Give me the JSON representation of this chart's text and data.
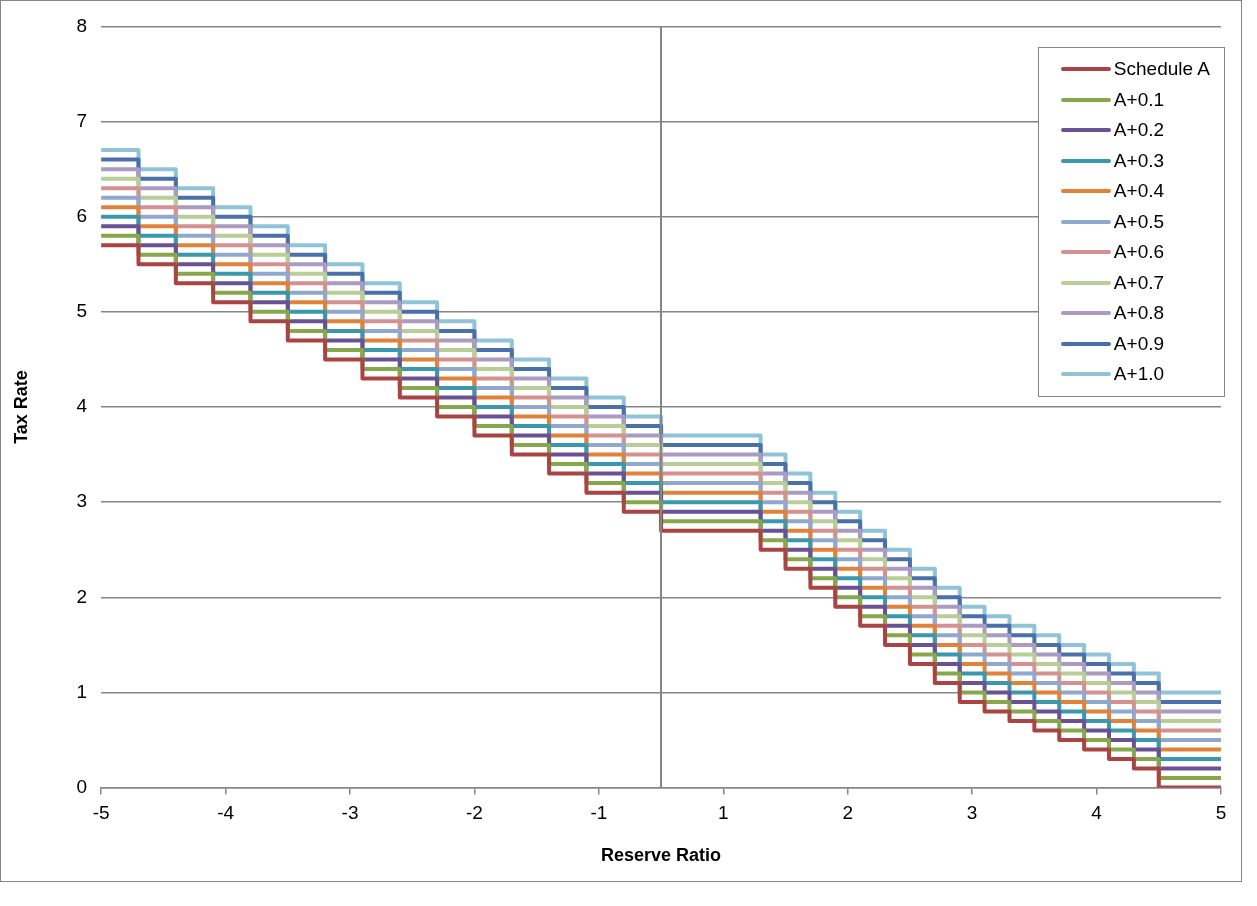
{
  "chart_data": {
    "type": "step",
    "xlabel": "Reserve Ratio",
    "ylabel": "Tax Rate",
    "categories": [
      "-5",
      null,
      null,
      null,
      null,
      null,
      null,
      null,
      null,
      null,
      "-4",
      null,
      null,
      null,
      null,
      null,
      null,
      null,
      null,
      null,
      "-3",
      null,
      null,
      null,
      null,
      null,
      null,
      null,
      null,
      null,
      "-2",
      null,
      null,
      null,
      null,
      null,
      null,
      null,
      null,
      null,
      "-1",
      null,
      null,
      null,
      null,
      null,
      null,
      null,
      null,
      null,
      "1",
      null,
      null,
      null,
      null,
      null,
      null,
      null,
      null,
      null,
      "2",
      null,
      null,
      null,
      null,
      null,
      null,
      null,
      null,
      null,
      "3",
      null,
      null,
      null,
      null,
      null,
      null,
      null,
      null,
      null,
      "4",
      null,
      null,
      null,
      null,
      null,
      null,
      null,
      null,
      null,
      "5"
    ],
    "ylim": [
      0,
      8
    ],
    "yticks": [
      0,
      1,
      2,
      3,
      4,
      5,
      6,
      7,
      8
    ],
    "grid": "y",
    "legend": "top right",
    "line_style": "solid",
    "marker": "none",
    "series": [
      {
        "name": "Schedule A",
        "color": "#a94442",
        "values": [
          5.7,
          5.7,
          5.7,
          5.5,
          5.5,
          5.5,
          5.3,
          5.3,
          5.3,
          5.1,
          5.1,
          5.1,
          4.9,
          4.9,
          4.9,
          4.7,
          4.7,
          4.7,
          4.5,
          4.5,
          4.5,
          4.3,
          4.3,
          4.3,
          4.1,
          4.1,
          4.1,
          3.9,
          3.9,
          3.9,
          3.7,
          3.7,
          3.7,
          3.5,
          3.5,
          3.5,
          3.3,
          3.3,
          3.3,
          3.1,
          3.1,
          3.1,
          2.9,
          2.9,
          2.9,
          2.7,
          2.7,
          2.7,
          2.7,
          2.7,
          2.7,
          2.7,
          2.7,
          2.5,
          2.5,
          2.3,
          2.3,
          2.1,
          2.1,
          1.9,
          1.9,
          1.7,
          1.7,
          1.5,
          1.5,
          1.3,
          1.3,
          1.1,
          1.1,
          0.9,
          0.9,
          0.8,
          0.8,
          0.7,
          0.7,
          0.6,
          0.6,
          0.5,
          0.5,
          0.4,
          0.4,
          0.3,
          0.3,
          0.2,
          0.2,
          0,
          0,
          0,
          0,
          0,
          0
        ]
      },
      {
        "name": "A+0.1",
        "color": "#86a84a",
        "values": [
          5.8,
          5.8,
          5.8,
          5.6,
          5.6,
          5.6,
          5.4,
          5.4,
          5.4,
          5.2,
          5.2,
          5.2,
          5.0,
          5.0,
          5.0,
          4.8,
          4.8,
          4.8,
          4.6,
          4.6,
          4.6,
          4.4,
          4.4,
          4.4,
          4.2,
          4.2,
          4.2,
          4.0,
          4.0,
          4.0,
          3.8,
          3.8,
          3.8,
          3.6,
          3.6,
          3.6,
          3.4,
          3.4,
          3.4,
          3.2,
          3.2,
          3.2,
          3.0,
          3.0,
          3.0,
          2.8,
          2.8,
          2.8,
          2.8,
          2.8,
          2.8,
          2.8,
          2.8,
          2.6,
          2.6,
          2.4,
          2.4,
          2.2,
          2.2,
          2.0,
          2.0,
          1.8,
          1.8,
          1.6,
          1.6,
          1.4,
          1.4,
          1.2,
          1.2,
          1.0,
          1.0,
          0.9,
          0.9,
          0.8,
          0.8,
          0.7,
          0.7,
          0.6,
          0.6,
          0.5,
          0.5,
          0.4,
          0.4,
          0.3,
          0.3,
          0.1,
          0.1,
          0.1,
          0.1,
          0.1,
          0.1
        ]
      },
      {
        "name": "A+0.2",
        "color": "#6a5193",
        "values": [
          5.9,
          5.9,
          5.9,
          5.7,
          5.7,
          5.7,
          5.5,
          5.5,
          5.5,
          5.3,
          5.3,
          5.3,
          5.1,
          5.1,
          5.1,
          4.9,
          4.9,
          4.9,
          4.7,
          4.7,
          4.7,
          4.5,
          4.5,
          4.5,
          4.3,
          4.3,
          4.3,
          4.1,
          4.1,
          4.1,
          3.9,
          3.9,
          3.9,
          3.7,
          3.7,
          3.7,
          3.5,
          3.5,
          3.5,
          3.3,
          3.3,
          3.3,
          3.1,
          3.1,
          3.1,
          2.9,
          2.9,
          2.9,
          2.9,
          2.9,
          2.9,
          2.9,
          2.9,
          2.7,
          2.7,
          2.5,
          2.5,
          2.3,
          2.3,
          2.1,
          2.1,
          1.9,
          1.9,
          1.7,
          1.7,
          1.5,
          1.5,
          1.3,
          1.3,
          1.1,
          1.1,
          1.0,
          1.0,
          0.9,
          0.9,
          0.8,
          0.8,
          0.7,
          0.7,
          0.6,
          0.6,
          0.5,
          0.5,
          0.4,
          0.4,
          0.2,
          0.2,
          0.2,
          0.2,
          0.2,
          0.2
        ]
      },
      {
        "name": "A+0.3",
        "color": "#3a98ae",
        "values": [
          6.0,
          6.0,
          6.0,
          5.8,
          5.8,
          5.8,
          5.6,
          5.6,
          5.6,
          5.4,
          5.4,
          5.4,
          5.2,
          5.2,
          5.2,
          5.0,
          5.0,
          5.0,
          4.8,
          4.8,
          4.8,
          4.6,
          4.6,
          4.6,
          4.4,
          4.4,
          4.4,
          4.2,
          4.2,
          4.2,
          4.0,
          4.0,
          4.0,
          3.8,
          3.8,
          3.8,
          3.6,
          3.6,
          3.6,
          3.4,
          3.4,
          3.4,
          3.2,
          3.2,
          3.2,
          3.0,
          3.0,
          3.0,
          3.0,
          3.0,
          3.0,
          3.0,
          3.0,
          2.8,
          2.8,
          2.6,
          2.6,
          2.4,
          2.4,
          2.2,
          2.2,
          2.0,
          2.0,
          1.8,
          1.8,
          1.6,
          1.6,
          1.4,
          1.4,
          1.2,
          1.2,
          1.1,
          1.1,
          1.0,
          1.0,
          0.9,
          0.9,
          0.8,
          0.8,
          0.7,
          0.7,
          0.6,
          0.6,
          0.5,
          0.5,
          0.3,
          0.3,
          0.3,
          0.3,
          0.3,
          0.3
        ]
      },
      {
        "name": "A+0.4",
        "color": "#e0823a",
        "values": [
          6.1,
          6.1,
          6.1,
          5.9,
          5.9,
          5.9,
          5.7,
          5.7,
          5.7,
          5.5,
          5.5,
          5.5,
          5.3,
          5.3,
          5.3,
          5.1,
          5.1,
          5.1,
          4.9,
          4.9,
          4.9,
          4.7,
          4.7,
          4.7,
          4.5,
          4.5,
          4.5,
          4.3,
          4.3,
          4.3,
          4.1,
          4.1,
          4.1,
          3.9,
          3.9,
          3.9,
          3.7,
          3.7,
          3.7,
          3.5,
          3.5,
          3.5,
          3.3,
          3.3,
          3.3,
          3.1,
          3.1,
          3.1,
          3.1,
          3.1,
          3.1,
          3.1,
          3.1,
          2.9,
          2.9,
          2.7,
          2.7,
          2.5,
          2.5,
          2.3,
          2.3,
          2.1,
          2.1,
          1.9,
          1.9,
          1.7,
          1.7,
          1.5,
          1.5,
          1.3,
          1.3,
          1.2,
          1.2,
          1.1,
          1.1,
          1.0,
          1.0,
          0.9,
          0.9,
          0.8,
          0.8,
          0.7,
          0.7,
          0.6,
          0.6,
          0.4,
          0.4,
          0.4,
          0.4,
          0.4,
          0.4
        ]
      },
      {
        "name": "A+0.5",
        "color": "#8ea8d0",
        "values": [
          6.2,
          6.2,
          6.2,
          6.0,
          6.0,
          6.0,
          5.8,
          5.8,
          5.8,
          5.6,
          5.6,
          5.6,
          5.4,
          5.4,
          5.4,
          5.2,
          5.2,
          5.2,
          5.0,
          5.0,
          5.0,
          4.8,
          4.8,
          4.8,
          4.6,
          4.6,
          4.6,
          4.4,
          4.4,
          4.4,
          4.2,
          4.2,
          4.2,
          4.0,
          4.0,
          4.0,
          3.8,
          3.8,
          3.8,
          3.6,
          3.6,
          3.6,
          3.4,
          3.4,
          3.4,
          3.2,
          3.2,
          3.2,
          3.2,
          3.2,
          3.2,
          3.2,
          3.2,
          3.0,
          3.0,
          2.8,
          2.8,
          2.6,
          2.6,
          2.4,
          2.4,
          2.2,
          2.2,
          2.0,
          2.0,
          1.8,
          1.8,
          1.6,
          1.6,
          1.4,
          1.4,
          1.3,
          1.3,
          1.2,
          1.2,
          1.1,
          1.1,
          1.0,
          1.0,
          0.9,
          0.9,
          0.8,
          0.8,
          0.7,
          0.7,
          0.5,
          0.5,
          0.5,
          0.5,
          0.5,
          0.5
        ]
      },
      {
        "name": "A+0.6",
        "color": "#d49190",
        "values": [
          6.3,
          6.3,
          6.3,
          6.1,
          6.1,
          6.1,
          5.9,
          5.9,
          5.9,
          5.7,
          5.7,
          5.7,
          5.5,
          5.5,
          5.5,
          5.3,
          5.3,
          5.3,
          5.1,
          5.1,
          5.1,
          4.9,
          4.9,
          4.9,
          4.7,
          4.7,
          4.7,
          4.5,
          4.5,
          4.5,
          4.3,
          4.3,
          4.3,
          4.1,
          4.1,
          4.1,
          3.9,
          3.9,
          3.9,
          3.7,
          3.7,
          3.7,
          3.5,
          3.5,
          3.5,
          3.3,
          3.3,
          3.3,
          3.3,
          3.3,
          3.3,
          3.3,
          3.3,
          3.1,
          3.1,
          2.9,
          2.9,
          2.7,
          2.7,
          2.5,
          2.5,
          2.3,
          2.3,
          2.1,
          2.1,
          1.9,
          1.9,
          1.7,
          1.7,
          1.5,
          1.5,
          1.4,
          1.4,
          1.3,
          1.3,
          1.2,
          1.2,
          1.1,
          1.1,
          1.0,
          1.0,
          0.9,
          0.9,
          0.8,
          0.8,
          0.6,
          0.6,
          0.6,
          0.6,
          0.6,
          0.6
        ]
      },
      {
        "name": "A+0.7",
        "color": "#b9cd96",
        "values": [
          6.4,
          6.4,
          6.4,
          6.2,
          6.2,
          6.2,
          6.0,
          6.0,
          6.0,
          5.8,
          5.8,
          5.8,
          5.6,
          5.6,
          5.6,
          5.4,
          5.4,
          5.4,
          5.2,
          5.2,
          5.2,
          5.0,
          5.0,
          5.0,
          4.8,
          4.8,
          4.8,
          4.6,
          4.6,
          4.6,
          4.4,
          4.4,
          4.4,
          4.2,
          4.2,
          4.2,
          4.0,
          4.0,
          4.0,
          3.8,
          3.8,
          3.8,
          3.6,
          3.6,
          3.6,
          3.4,
          3.4,
          3.4,
          3.4,
          3.4,
          3.4,
          3.4,
          3.4,
          3.2,
          3.2,
          3.0,
          3.0,
          2.8,
          2.8,
          2.6,
          2.6,
          2.4,
          2.4,
          2.2,
          2.2,
          2.0,
          2.0,
          1.8,
          1.8,
          1.6,
          1.6,
          1.5,
          1.5,
          1.4,
          1.4,
          1.3,
          1.3,
          1.2,
          1.2,
          1.1,
          1.1,
          1.0,
          1.0,
          0.9,
          0.9,
          0.7,
          0.7,
          0.7,
          0.7,
          0.7,
          0.7
        ]
      },
      {
        "name": "A+0.8",
        "color": "#a99bc1",
        "values": [
          6.5,
          6.5,
          6.5,
          6.3,
          6.3,
          6.3,
          6.1,
          6.1,
          6.1,
          5.9,
          5.9,
          5.9,
          5.7,
          5.7,
          5.7,
          5.5,
          5.5,
          5.5,
          5.3,
          5.3,
          5.3,
          5.1,
          5.1,
          5.1,
          4.9,
          4.9,
          4.9,
          4.7,
          4.7,
          4.7,
          4.5,
          4.5,
          4.5,
          4.3,
          4.3,
          4.3,
          4.1,
          4.1,
          4.1,
          3.9,
          3.9,
          3.9,
          3.7,
          3.7,
          3.7,
          3.5,
          3.5,
          3.5,
          3.5,
          3.5,
          3.5,
          3.5,
          3.5,
          3.3,
          3.3,
          3.1,
          3.1,
          2.9,
          2.9,
          2.7,
          2.7,
          2.5,
          2.5,
          2.3,
          2.3,
          2.1,
          2.1,
          1.9,
          1.9,
          1.7,
          1.7,
          1.6,
          1.6,
          1.5,
          1.5,
          1.4,
          1.4,
          1.3,
          1.3,
          1.2,
          1.2,
          1.1,
          1.1,
          1.0,
          1.0,
          0.8,
          0.8,
          0.8,
          0.8,
          0.8,
          0.8
        ]
      },
      {
        "name": "A+0.9",
        "color": "#4a70aa",
        "values": [
          6.6,
          6.6,
          6.6,
          6.4,
          6.4,
          6.4,
          6.2,
          6.2,
          6.2,
          6.0,
          6.0,
          6.0,
          5.8,
          5.8,
          5.8,
          5.6,
          5.6,
          5.6,
          5.4,
          5.4,
          5.4,
          5.2,
          5.2,
          5.2,
          5.0,
          5.0,
          5.0,
          4.8,
          4.8,
          4.8,
          4.6,
          4.6,
          4.6,
          4.4,
          4.4,
          4.4,
          4.2,
          4.2,
          4.2,
          4.0,
          4.0,
          4.0,
          3.8,
          3.8,
          3.8,
          3.6,
          3.6,
          3.6,
          3.6,
          3.6,
          3.6,
          3.6,
          3.6,
          3.4,
          3.4,
          3.2,
          3.2,
          3.0,
          3.0,
          2.8,
          2.8,
          2.6,
          2.6,
          2.4,
          2.4,
          2.2,
          2.2,
          2.0,
          2.0,
          1.8,
          1.8,
          1.7,
          1.7,
          1.6,
          1.6,
          1.5,
          1.5,
          1.4,
          1.4,
          1.3,
          1.3,
          1.2,
          1.2,
          1.1,
          1.1,
          0.9,
          0.9,
          0.9,
          0.9,
          0.9,
          0.9
        ]
      },
      {
        "name": "A+1.0",
        "color": "#8ec3d8",
        "values": [
          6.7,
          6.7,
          6.7,
          6.5,
          6.5,
          6.5,
          6.3,
          6.3,
          6.3,
          6.1,
          6.1,
          6.1,
          5.9,
          5.9,
          5.9,
          5.7,
          5.7,
          5.7,
          5.5,
          5.5,
          5.5,
          5.3,
          5.3,
          5.3,
          5.1,
          5.1,
          5.1,
          4.9,
          4.9,
          4.9,
          4.7,
          4.7,
          4.7,
          4.5,
          4.5,
          4.5,
          4.3,
          4.3,
          4.3,
          4.1,
          4.1,
          4.1,
          3.9,
          3.9,
          3.9,
          3.7,
          3.7,
          3.7,
          3.7,
          3.7,
          3.7,
          3.7,
          3.7,
          3.5,
          3.5,
          3.3,
          3.3,
          3.1,
          3.1,
          2.9,
          2.9,
          2.7,
          2.7,
          2.5,
          2.5,
          2.3,
          2.3,
          2.1,
          2.1,
          1.9,
          1.9,
          1.8,
          1.8,
          1.7,
          1.7,
          1.6,
          1.6,
          1.5,
          1.5,
          1.4,
          1.4,
          1.3,
          1.3,
          1.2,
          1.2,
          1.0,
          1.0,
          1.0,
          1.0,
          1.0,
          1.0
        ]
      }
    ]
  }
}
